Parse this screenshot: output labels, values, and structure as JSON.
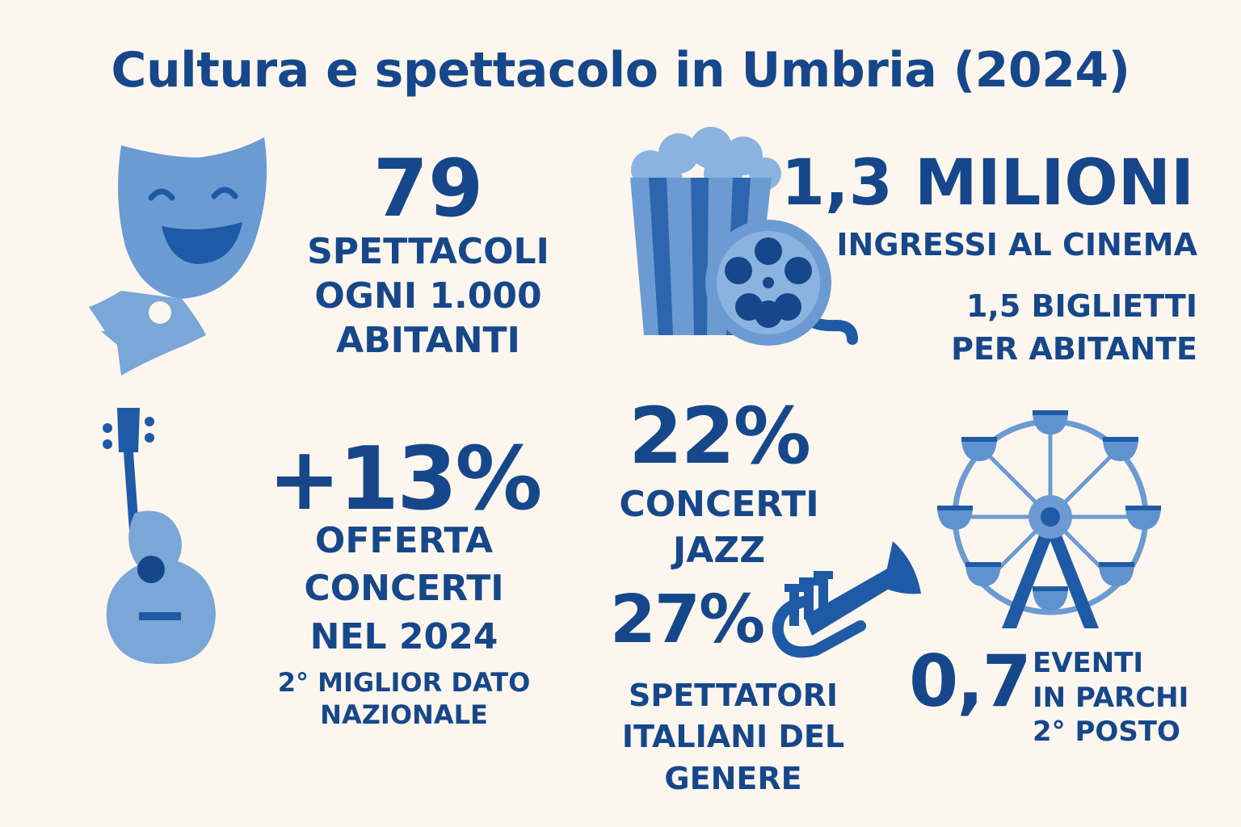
{
  "title": "Cultura e spettacolo in Umbria (2024)",
  "colors": {
    "background": "#fcf6ee",
    "text": "#16478a",
    "icon_light": "#6b9bd2",
    "icon_dark": "#1f5aa6"
  },
  "theatre": {
    "icon": "theatre-mask-icon",
    "value": "79",
    "label_lines": [
      "SPETTACOLI",
      "OGNI 1.000",
      "ABITANTI"
    ]
  },
  "cinema": {
    "icon": "popcorn-film-reel-icon",
    "value": "1,3 MILIONI",
    "label": "INGRESSI AL CINEMA",
    "sub_lines": [
      "1,5 BIGLIETTI",
      "PER ABITANTE"
    ]
  },
  "concerts": {
    "icon": "guitar-icon",
    "value": "+13%",
    "label_lines": [
      "OFFERTA",
      "CONCERTI",
      "NEL 2024"
    ],
    "note_lines": [
      "2° MIGLIOR DATO",
      "NAZIONALE"
    ]
  },
  "jazz": {
    "value": "22%",
    "label_lines": [
      "CONCERTI",
      "JAZZ"
    ]
  },
  "jazz_spectators": {
    "icon": "trumpet-icon",
    "value": "27%",
    "label_lines": [
      "SPETTATORI",
      "ITALIANI DEL GENERE"
    ]
  },
  "parks": {
    "icon": "ferris-wheel-icon",
    "value": "0,7",
    "label_lines": [
      "EVENTI",
      "IN PARCHI",
      "2° POSTO"
    ]
  }
}
